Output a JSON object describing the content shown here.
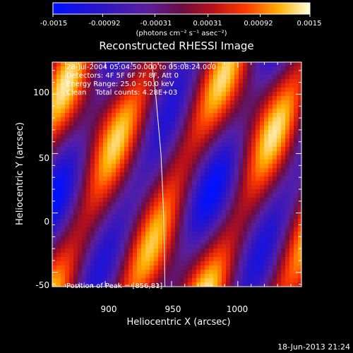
{
  "chart_data": {
    "type": "heatmap",
    "title": "Reconstructed RHESSI Image",
    "xlabel": "Heliocentric X (arcsec)",
    "ylabel": "Heliocentric Y (arcsec)",
    "xlim": [
      860,
      1048
    ],
    "ylim": [
      -62,
      127
    ],
    "xticks": [
      900,
      950,
      1000
    ],
    "yticks": [
      -50,
      0,
      50,
      100
    ],
    "annotations": [
      "28-Jul-2004 05:04:50.000 to 05:08:24.000",
      "Detectors: 4F 5F 6F 7F 8F, Att 0",
      "Energy Range: 25.0 - 50.0 keV",
      "Clean    Total counts: 4.28E+03"
    ],
    "peak_label": "Position of Peak = [856,81]",
    "colorbar": {
      "ticks": [
        "-0.0015",
        "-0.00092",
        "-0.00031",
        "0.00031",
        "0.00092",
        "0.0015"
      ],
      "range": [
        -0.0015,
        0.0015
      ],
      "units": "(photons cm⁻² s⁻¹ asec⁻²)"
    },
    "limb_curve": [
      {
        "x": 945,
        "y": -62
      },
      {
        "x": 944,
        "y": 0
      },
      {
        "x": 942,
        "y": 50
      },
      {
        "x": 938,
        "y": 100
      },
      {
        "x": 935,
        "y": 127
      }
    ]
  },
  "footer": {
    "timestamp": "18-Jun-2013 21:24"
  },
  "colors": {
    "background": "#000000",
    "text": "#ffffff",
    "limb": "#ffffff"
  }
}
